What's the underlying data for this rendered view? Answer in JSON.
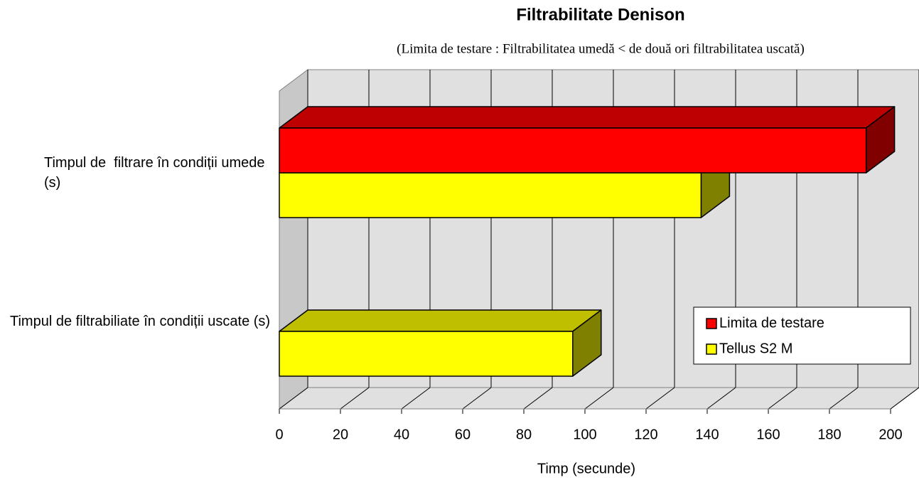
{
  "chart_data": {
    "type": "bar3d",
    "orientation": "horizontal",
    "title": "Filtrabilitate Denison",
    "subtitle": "(Limita de testare : Filtrabilitatea umedă < de două ori filtrabilitatea uscată)",
    "x_label": "Timp (secunde)",
    "categories": [
      "Timpul de  filtrare în condiții umede (s)",
      "Timpul de filtrabiliate în condiții uscate (s)"
    ],
    "series": [
      {
        "name": "Limita de testare",
        "color": "#ff0000",
        "values": [
          192,
          null
        ]
      },
      {
        "name": "Tellus S2 M",
        "color": "#ffff00",
        "values": [
          138,
          96
        ]
      }
    ],
    "xlim": [
      0,
      200
    ],
    "xticks": [
      0,
      20,
      40,
      60,
      80,
      100,
      120,
      140,
      160,
      180,
      200
    ],
    "grid": true,
    "legend": "lower right"
  }
}
